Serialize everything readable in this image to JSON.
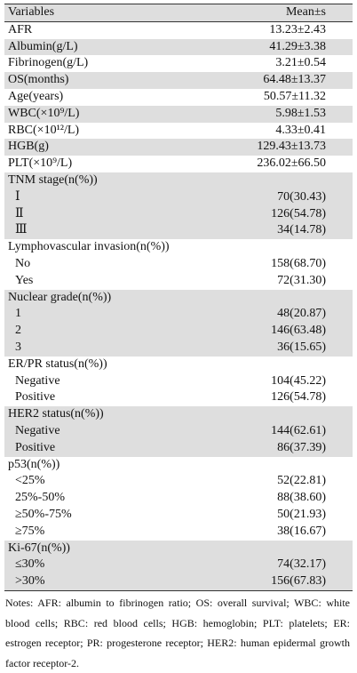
{
  "table": {
    "header": [
      "Variables",
      "Mean±s"
    ],
    "sections": [
      {
        "rows": [
          [
            "AFR",
            "13.23±2.43"
          ]
        ]
      },
      {
        "rows": [
          [
            "Albumin(g/L)",
            "41.29±3.38"
          ]
        ]
      },
      {
        "rows": [
          [
            "Fibrinogen(g/L)",
            "3.21±0.54"
          ]
        ]
      },
      {
        "rows": [
          [
            "OS(months)",
            "64.48±13.37"
          ]
        ]
      },
      {
        "rows": [
          [
            "Age(years)",
            "50.57±11.32"
          ]
        ]
      },
      {
        "rows": [
          [
            "WBC(×10⁹/L)",
            "5.98±1.53"
          ]
        ]
      },
      {
        "rows": [
          [
            "RBC(×10¹²/L)",
            "4.33±0.41"
          ]
        ]
      },
      {
        "rows": [
          [
            "HGB(g)",
            "129.43±13.73"
          ]
        ]
      },
      {
        "rows": [
          [
            "PLT(×10⁹/L)",
            "236.02±66.50"
          ]
        ]
      },
      {
        "rows": [
          [
            "TNM stage(n(%))"
          ],
          [
            "Ⅰ",
            "70(30.43)"
          ],
          [
            "Ⅱ",
            "126(54.78)"
          ],
          [
            "Ⅲ",
            "34(14.78)"
          ]
        ]
      },
      {
        "rows": [
          [
            "Lymphovascular invasion(n(%))"
          ],
          [
            "No",
            "158(68.70)"
          ],
          [
            "Yes",
            "72(31.30)"
          ]
        ]
      },
      {
        "rows": [
          [
            "Nuclear grade(n(%))"
          ],
          [
            "1",
            "48(20.87)"
          ],
          [
            "2",
            "146(63.48)"
          ],
          [
            "3",
            "36(15.65)"
          ]
        ]
      },
      {
        "rows": [
          [
            "ER/PR status(n(%))"
          ],
          [
            "Negative",
            "104(45.22)"
          ],
          [
            "Positive",
            "126(54.78)"
          ]
        ]
      },
      {
        "rows": [
          [
            "HER2 status(n(%))"
          ],
          [
            "Negative",
            "144(62.61)"
          ],
          [
            "Positive",
            "86(37.39)"
          ]
        ]
      },
      {
        "rows": [
          [
            "p53(n(%))"
          ],
          [
            "<25%",
            "52(22.81)"
          ],
          [
            "25%-50%",
            "88(38.60)"
          ],
          [
            "≥50%-75%",
            "50(21.93)"
          ],
          [
            "≥75%",
            "38(16.67)"
          ]
        ]
      },
      {
        "rows": [
          [
            "Ki-67(n(%))"
          ],
          [
            "≤30%",
            "74(32.17)"
          ],
          [
            ">30%",
            "156(67.83)"
          ]
        ]
      }
    ],
    "notes": "Notes: AFR: albumin to fibrinogen ratio; OS: overall survival; WBC: white blood cells; RBC: red blood cells; HGB: hemoglobin; PLT: platelets; ER: estrogen receptor; PR: progesterone receptor; HER2: human epidermal growth factor receptor-2."
  }
}
